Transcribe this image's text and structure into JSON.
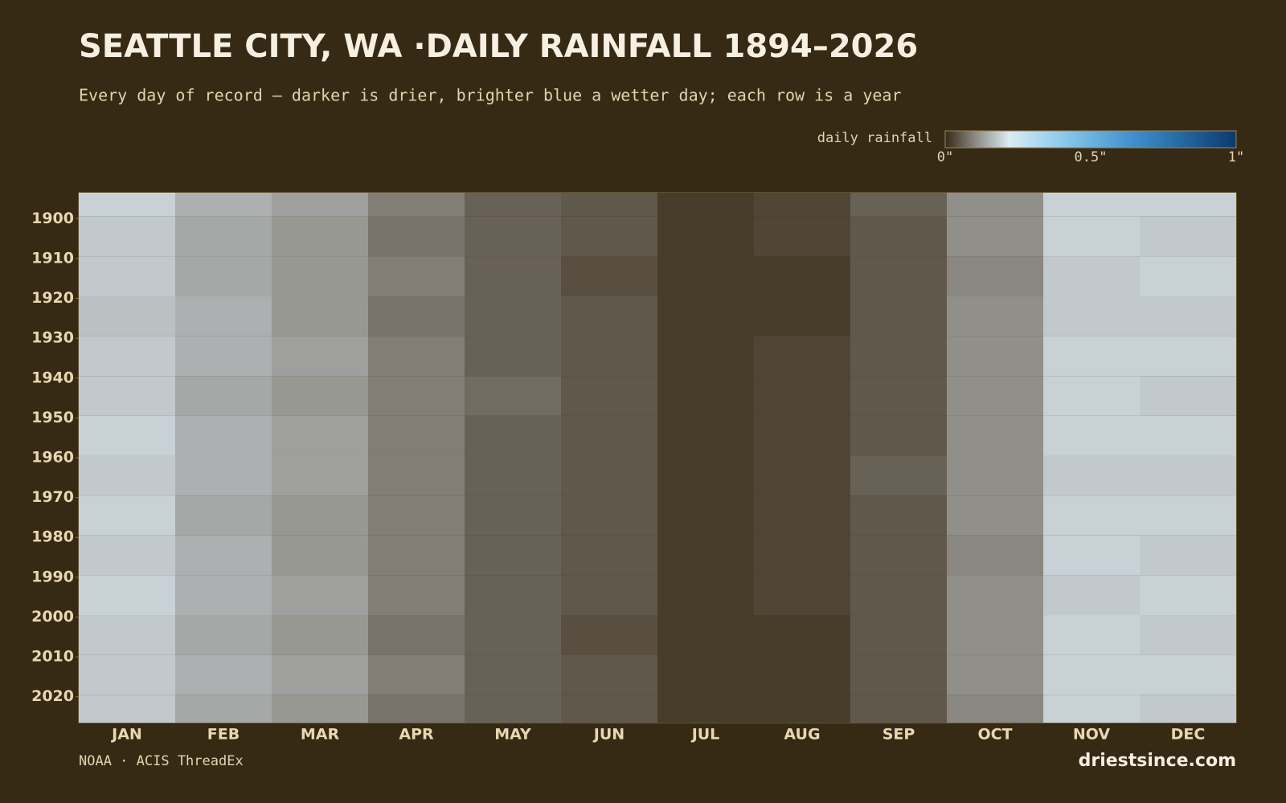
{
  "chart_data": {
    "type": "heatmap",
    "title": "SEATTLE CITY, WA ·DAILY RAINFALL 1894–2026",
    "subtitle": "Every day of record — darker is drier, brighter blue a wetter day; each row is a year",
    "legend_title": "daily rainfall",
    "color_ticks": [
      {
        "value": 0,
        "label": "0\""
      },
      {
        "value": 0.5,
        "label": "0.5\""
      },
      {
        "value": 1,
        "label": "1\""
      }
    ],
    "colorscale": [
      [
        0,
        "#362a16"
      ],
      [
        0.1,
        "#8a8780"
      ],
      [
        0.22,
        "#dceaf2"
      ],
      [
        0.4,
        "#8ccbec"
      ],
      [
        0.65,
        "#3d8fcc"
      ],
      [
        1,
        "#0b3a6e"
      ]
    ],
    "categories": [
      "JAN",
      "FEB",
      "MAR",
      "APR",
      "MAY",
      "JUN",
      "JUL",
      "AUG",
      "SEP",
      "OCT",
      "NOV",
      "DEC"
    ],
    "y_bins": [
      1894,
      1900,
      1910,
      1920,
      1930,
      1940,
      1950,
      1960,
      1970,
      1980,
      1990,
      2000,
      2010,
      2020,
      2027
    ],
    "ylim": [
      1894,
      2027
    ],
    "yticks": [
      1900,
      1910,
      1920,
      1930,
      1940,
      1950,
      1960,
      1970,
      1980,
      1990,
      2000,
      2010,
      2020
    ],
    "values": [
      [
        0.19,
        0.15,
        0.13,
        0.09,
        0.06,
        0.05,
        0.02,
        0.03,
        0.06,
        0.11,
        0.19,
        0.19
      ],
      [
        0.18,
        0.14,
        0.12,
        0.08,
        0.06,
        0.05,
        0.02,
        0.03,
        0.05,
        0.11,
        0.19,
        0.18
      ],
      [
        0.18,
        0.14,
        0.12,
        0.09,
        0.06,
        0.04,
        0.02,
        0.02,
        0.05,
        0.1,
        0.18,
        0.19
      ],
      [
        0.17,
        0.15,
        0.12,
        0.08,
        0.06,
        0.05,
        0.02,
        0.02,
        0.05,
        0.11,
        0.18,
        0.18
      ],
      [
        0.18,
        0.15,
        0.13,
        0.09,
        0.06,
        0.05,
        0.02,
        0.03,
        0.05,
        0.11,
        0.19,
        0.19
      ],
      [
        0.18,
        0.14,
        0.12,
        0.09,
        0.07,
        0.05,
        0.02,
        0.03,
        0.05,
        0.11,
        0.19,
        0.18
      ],
      [
        0.19,
        0.15,
        0.13,
        0.09,
        0.06,
        0.05,
        0.02,
        0.03,
        0.05,
        0.11,
        0.19,
        0.19
      ],
      [
        0.18,
        0.15,
        0.13,
        0.09,
        0.06,
        0.05,
        0.02,
        0.03,
        0.06,
        0.11,
        0.18,
        0.18
      ],
      [
        0.19,
        0.14,
        0.12,
        0.09,
        0.06,
        0.05,
        0.02,
        0.03,
        0.05,
        0.11,
        0.19,
        0.19
      ],
      [
        0.18,
        0.15,
        0.12,
        0.09,
        0.06,
        0.05,
        0.02,
        0.03,
        0.05,
        0.1,
        0.19,
        0.18
      ],
      [
        0.19,
        0.15,
        0.13,
        0.09,
        0.06,
        0.05,
        0.02,
        0.03,
        0.05,
        0.11,
        0.18,
        0.19
      ],
      [
        0.18,
        0.14,
        0.12,
        0.08,
        0.06,
        0.04,
        0.02,
        0.02,
        0.05,
        0.11,
        0.19,
        0.18
      ],
      [
        0.18,
        0.15,
        0.13,
        0.09,
        0.06,
        0.05,
        0.02,
        0.02,
        0.05,
        0.11,
        0.19,
        0.19
      ],
      [
        0.18,
        0.14,
        0.12,
        0.08,
        0.06,
        0.05,
        0.02,
        0.02,
        0.05,
        0.1,
        0.19,
        0.18
      ]
    ],
    "source": "NOAA · ACIS ThreadEx",
    "brand": "driestsince.com"
  }
}
